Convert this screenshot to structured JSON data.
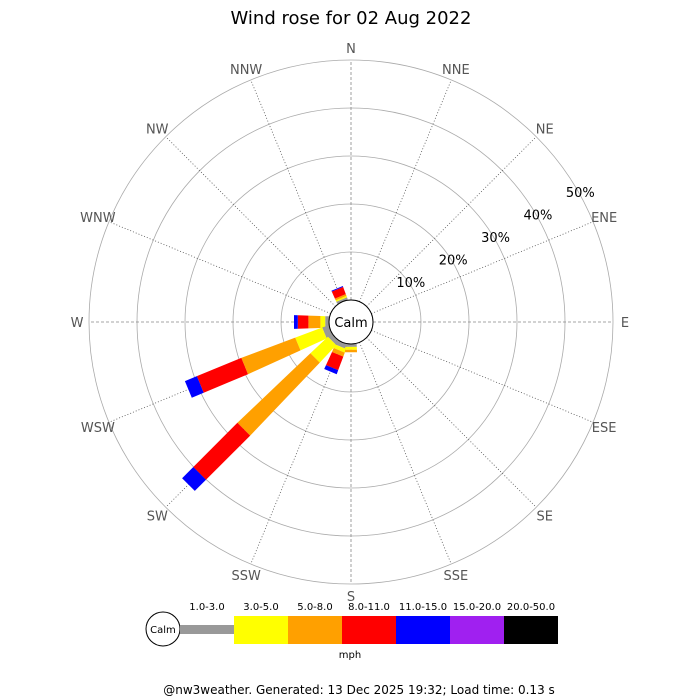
{
  "chart_data": {
    "type": "windrose",
    "title": "Wind rose for 02 Aug 2022",
    "directions": [
      "N",
      "NNE",
      "NE",
      "ENE",
      "E",
      "ESE",
      "SE",
      "SSE",
      "S",
      "SSW",
      "SW",
      "WSW",
      "W",
      "WNW",
      "NW",
      "NNW"
    ],
    "radial_ticks": [
      "10%",
      "20%",
      "30%",
      "40%",
      "50%"
    ],
    "radial_max": 50,
    "calm_label": "Calm",
    "unit_label": "mph",
    "speed_bins": [
      {
        "label": "1.0-3.0",
        "color": "#999999"
      },
      {
        "label": "3.0-5.0",
        "color": "#ffff00"
      },
      {
        "label": "5.0-8.0",
        "color": "#ffa000"
      },
      {
        "label": "8.0-11.0",
        "color": "#ff0000"
      },
      {
        "label": "11.0-15.0",
        "color": "#0000ff"
      },
      {
        "label": "15.0-20.0",
        "color": "#a020f0"
      },
      {
        "label": "20.0-50.0",
        "color": "#000000"
      }
    ],
    "series": [
      {
        "direction": "NNW",
        "values": [
          0.5,
          0.3,
          0.4,
          1.6,
          0.2,
          0,
          0
        ]
      },
      {
        "direction": "W",
        "values": [
          0.8,
          1.0,
          2.5,
          2.2,
          0.8,
          0,
          0
        ]
      },
      {
        "direction": "WSW",
        "values": [
          1.4,
          6.0,
          12.0,
          10.0,
          2.7,
          0,
          0
        ]
      },
      {
        "direction": "SW",
        "values": [
          1.0,
          5.0,
          21.0,
          13.0,
          3.3,
          0,
          0
        ]
      },
      {
        "direction": "SSW",
        "values": [
          1.0,
          0.8,
          0.9,
          3.0,
          0.9,
          0,
          0
        ]
      },
      {
        "direction": "S",
        "values": [
          0.6,
          0.6,
          0.5,
          0,
          0,
          0,
          0
        ]
      }
    ]
  },
  "footer": "@nw3weather. Generated: 13 Dec 2025 19:32; Load time: 0.13 s"
}
